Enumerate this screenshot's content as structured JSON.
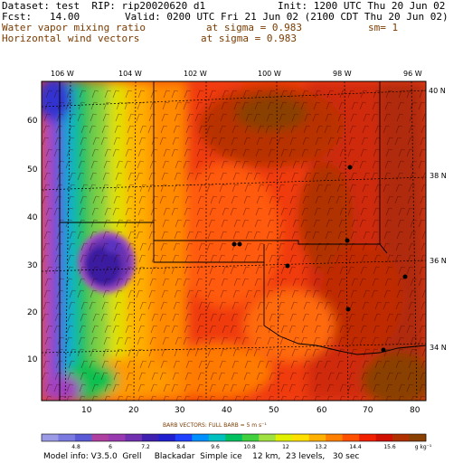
{
  "header": {
    "dataset": "Dataset: test  RIP: rip20020620 d1",
    "init": "Init: 1200 UTC Thu 20 Jun 02",
    "fcst": "Fcst:   14.00",
    "valid": "Valid: 0200 UTC Fri 21 Jun 02 (2100 CDT Thu 20 Jun 02)",
    "field1": "Water vapor mixing ratio",
    "sigma1": "at sigma = 0.983",
    "sm": "sm= 1",
    "field2": "Horizontal wind vectors",
    "sigma2": "at sigma = 0.983"
  },
  "top_lon_labels": [
    "106 W",
    "104 W",
    "102 W",
    "100 W",
    "98 W",
    "96 W"
  ],
  "right_lat_labels": [
    "40 N",
    "38 N",
    "36 N",
    "34 N"
  ],
  "y_ticks": [
    "60",
    "50",
    "40",
    "30",
    "20",
    "10"
  ],
  "x_ticks": [
    "10",
    "20",
    "30",
    "40",
    "50",
    "60",
    "70",
    "80"
  ],
  "barb_note": "BARB VECTORS:  FULL BARB = 5 m s⁻¹",
  "colorbar": {
    "labels": [
      "4.8",
      "6",
      "7.2",
      "8.4",
      "9.6",
      "10.8",
      "12",
      "13.2",
      "14.4",
      "15.6"
    ],
    "units": "g kg⁻¹",
    "colors": [
      "#9a9ae6",
      "#7a7ae0",
      "#5a5ad6",
      "#b040a0",
      "#9a3ab0",
      "#7030b0",
      "#4020b0",
      "#2020d0",
      "#2040ff",
      "#0090ff",
      "#00c0c0",
      "#00c060",
      "#40d040",
      "#a0e040",
      "#e0f000",
      "#ffe000",
      "#ffb000",
      "#ff8000",
      "#ff5000",
      "#f02000",
      "#d01000",
      "#b03000",
      "#8a4000"
    ]
  },
  "footer": "Model info: V3.5.0  Grell     Blackadar  Simple ice    12 km,  23 levels,   30 sec",
  "map": {
    "frame_x": [
      1,
      82
    ],
    "frame_y": [
      1,
      68
    ]
  }
}
